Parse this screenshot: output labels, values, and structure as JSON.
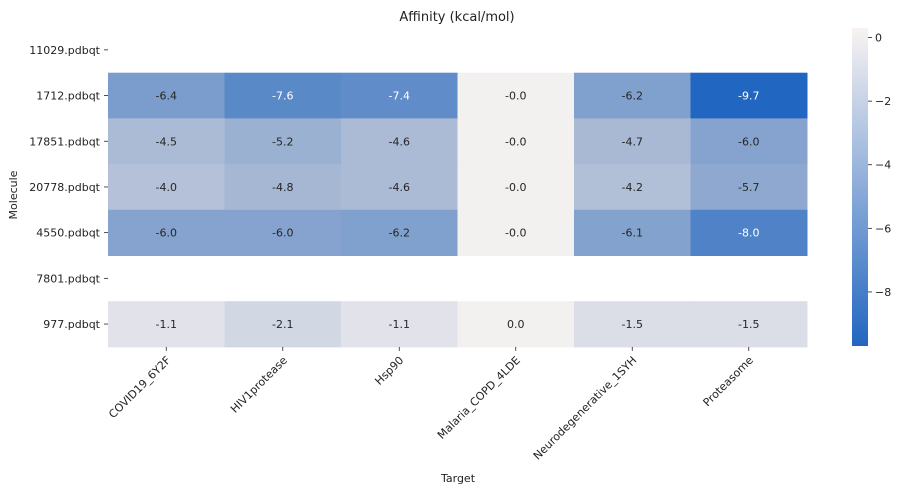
{
  "chart_data": {
    "type": "heatmap",
    "title": "Affinity (kcal/mol)",
    "xlabel": "Target",
    "ylabel": "Molecule",
    "x_categories": [
      "COVID19_6Y2F",
      "HIV1protease",
      "Hsp90",
      "Malaria_COPD_4LDE",
      "Neurodegenerative_1SYH",
      "Proteasome"
    ],
    "y_categories": [
      "11029.pdbqt",
      "1712.pdbqt",
      "17851.pdbqt",
      "20778.pdbqt",
      "4550.pdbqt",
      "7801.pdbqt",
      "977.pdbqt"
    ],
    "values": [
      [
        null,
        null,
        null,
        null,
        null,
        null
      ],
      [
        -6.4,
        -7.6,
        -7.4,
        -0.0,
        -6.2,
        -9.7
      ],
      [
        -4.5,
        -5.2,
        -4.6,
        -0.0,
        -4.7,
        -6.0
      ],
      [
        -4.0,
        -4.8,
        -4.6,
        -0.0,
        -4.2,
        -5.7
      ],
      [
        -6.0,
        -6.0,
        -6.2,
        -0.0,
        -6.1,
        -8.0
      ],
      [
        null,
        null,
        null,
        null,
        null,
        null
      ],
      [
        -1.1,
        -2.1,
        -1.1,
        0.0,
        -1.5,
        -1.5
      ]
    ],
    "value_labels": [
      [
        "",
        "",
        "",
        "",
        "",
        ""
      ],
      [
        "-6.4",
        "-7.6",
        "-7.4",
        "-0.0",
        "-6.2",
        "-9.7"
      ],
      [
        "-4.5",
        "-5.2",
        "-4.6",
        "-0.0",
        "-4.7",
        "-6.0"
      ],
      [
        "-4.0",
        "-4.8",
        "-4.6",
        "-0.0",
        "-4.2",
        "-5.7"
      ],
      [
        "-6.0",
        "-6.0",
        "-6.2",
        "-0.0",
        "-6.1",
        "-8.0"
      ],
      [
        "",
        "",
        "",
        "",
        "",
        ""
      ],
      [
        "-1.1",
        "-2.1",
        "-1.1",
        "0.0",
        "-1.5",
        "-1.5"
      ]
    ],
    "colorbar": {
      "range": [
        -9.7,
        0.3
      ],
      "ticks": [
        0,
        -2,
        -4,
        -6,
        -8
      ],
      "tick_labels": [
        "0",
        "−2",
        "−4",
        "−6",
        "−8"
      ],
      "low_color": "#2166c0",
      "high_color": "#f8f3f2"
    }
  }
}
